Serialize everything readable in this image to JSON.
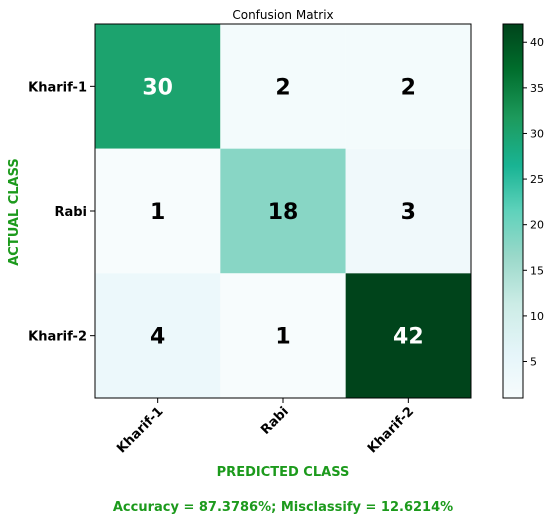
{
  "chart_data": {
    "type": "heatmap",
    "title": "Confusion Matrix",
    "xlabel": "PREDICTED CLASS",
    "ylabel": "ACTUAL CLASS",
    "x_categories": [
      "Kharif-1",
      "Rabi",
      "Kharif-2"
    ],
    "y_categories": [
      "Kharif-1",
      "Rabi",
      "Kharif-2"
    ],
    "values": [
      [
        30,
        2,
        2
      ],
      [
        1,
        18,
        3
      ],
      [
        4,
        1,
        42
      ]
    ],
    "colorbar": {
      "min": 1,
      "max": 42,
      "ticks": [
        5,
        10,
        15,
        20,
        25,
        30,
        35,
        40
      ]
    },
    "colormap": {
      "low": "#f7fcfd",
      "mid": "#5fd2bb",
      "high": "#00441b"
    },
    "caption": "Accuracy = 87.3786%; Misclassify = 12.6214%"
  }
}
